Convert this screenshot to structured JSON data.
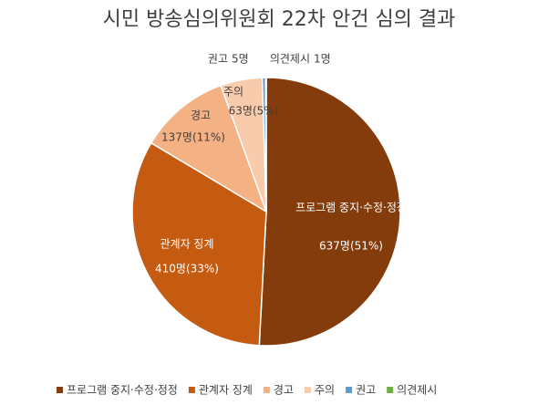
{
  "chart_data": {
    "type": "pie",
    "title": "시민 방송심의위원회 22차 안건 심의 결과",
    "categories": [
      "프로그램 중지·수정·정정",
      "관계자 징계",
      "경고",
      "주의",
      "권고",
      "의견제시"
    ],
    "values": [
      637,
      410,
      137,
      63,
      5,
      1
    ],
    "value_labels": [
      "637명(51%)",
      "410명(33%)",
      "137명(11%)",
      "63명(5%)",
      "5명",
      "1명"
    ],
    "colors": [
      "#843c0c",
      "#c55a11",
      "#f4b183",
      "#f8cbad",
      "#5b9bd5",
      "#70ad47"
    ],
    "legend": "bottom"
  }
}
